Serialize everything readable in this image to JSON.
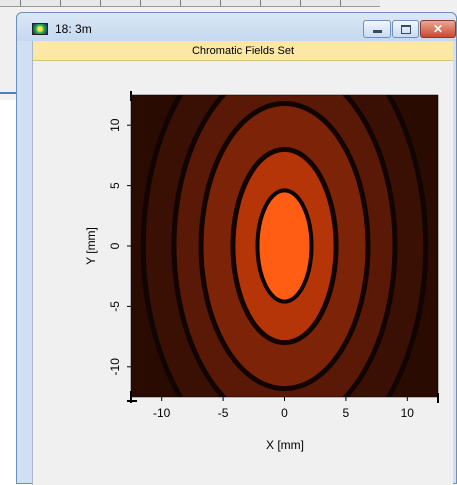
{
  "window": {
    "title": "18: 3m",
    "min_glyph": "",
    "max_glyph": "",
    "close_glyph": "✕"
  },
  "panel": {
    "header": "Chromatic Fields Set"
  },
  "colors": {
    "window_frame": "#cfe0f3",
    "header_bg": "#fbe8a6",
    "field_hot": "#ff5a14",
    "field_dark": "#200800"
  },
  "chart_data": {
    "type": "heatmap",
    "title": "",
    "xlabel": "X [mm]",
    "ylabel": "Y [mm]",
    "xlim": [
      -12.5,
      12.5
    ],
    "ylim": [
      -12.5,
      12.5
    ],
    "xticks": [
      -10,
      -5,
      0,
      5,
      10
    ],
    "yticks": [
      -10,
      -5,
      0,
      5,
      10
    ],
    "xtick_labels": [
      "-10",
      "-5",
      "0",
      "5",
      "10"
    ],
    "ytick_labels": [
      "-10",
      "-5",
      "0",
      "5",
      "10"
    ],
    "pattern": "elliptical concentric rings",
    "ring_semi_axes_mm": [
      {
        "x": 2.2,
        "y": 4.6,
        "role": "central lobe"
      },
      {
        "x": 4.2,
        "y": 8.0,
        "role": "first dark ring"
      },
      {
        "x": 6.8,
        "y": 11.8,
        "role": "second dark ring"
      },
      {
        "x": 9.0,
        "y": 15.0,
        "role": "third dark ring"
      },
      {
        "x": 11.5,
        "y": 18.5,
        "role": "fourth dark ring"
      }
    ],
    "grid": false,
    "legend": "none"
  }
}
